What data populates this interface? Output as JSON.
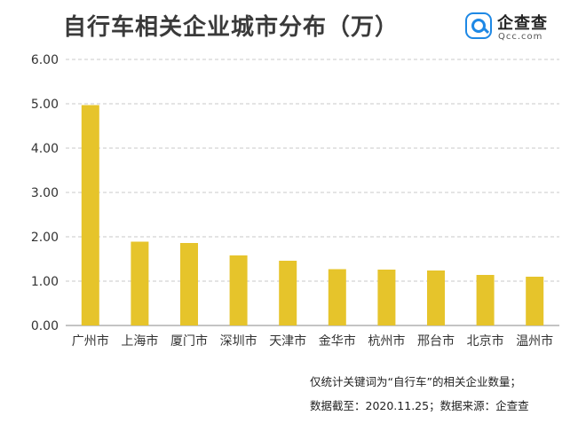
{
  "title": "自行车相关企业城市分布（万）",
  "logo": {
    "name": "企查查",
    "domain": "Qcc.com"
  },
  "colors": {
    "bar": "#e6c42b",
    "grid": "#c8c8c8",
    "axis": "#888888",
    "text": "#333333"
  },
  "chart_data": {
    "type": "bar",
    "title": "自行车相关企业城市分布（万）",
    "categories": [
      "广州市",
      "上海市",
      "厦门市",
      "深圳市",
      "天津市",
      "金华市",
      "杭州市",
      "邢台市",
      "北京市",
      "温州市"
    ],
    "values": [
      4.97,
      1.89,
      1.86,
      1.58,
      1.46,
      1.27,
      1.26,
      1.24,
      1.14,
      1.1
    ],
    "yticks": [
      "0.00",
      "1.00",
      "2.00",
      "3.00",
      "4.00",
      "5.00",
      "6.00"
    ],
    "ylim": [
      0,
      6
    ],
    "xlabel": "",
    "ylabel": "",
    "grid": true
  },
  "notes": {
    "line1": "仅统计关键词为“自行车”的相关企业数量；",
    "line2": "数据截至：2020.11.25；数据来源：企查查"
  }
}
